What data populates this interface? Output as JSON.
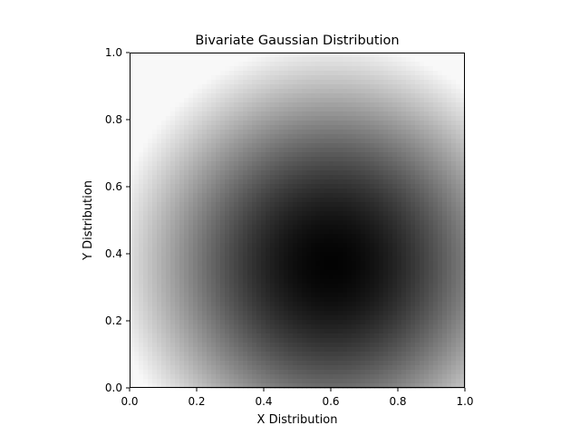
{
  "chart_data": {
    "type": "heatmap",
    "title": "Bivariate Gaussian Distribution",
    "xlabel": "X Distribution",
    "ylabel": "Y Distribution",
    "xlim": [
      0,
      1
    ],
    "ylim": [
      0,
      1
    ],
    "xticks": [
      "0.0",
      "0.2",
      "0.4",
      "0.6",
      "0.8",
      "1.0"
    ],
    "yticks": [
      "0.0",
      "0.2",
      "0.4",
      "0.6",
      "0.8",
      "1.0"
    ],
    "grid": false,
    "colormap": "gray",
    "colormap_endpoints": {
      "low": "#000000",
      "high": "#ffffff"
    },
    "gaussian": {
      "mean": [
        0.6,
        0.37
      ],
      "std": [
        0.45,
        0.45
      ],
      "peak_value": 1.0,
      "peak_color": "dark"
    }
  }
}
